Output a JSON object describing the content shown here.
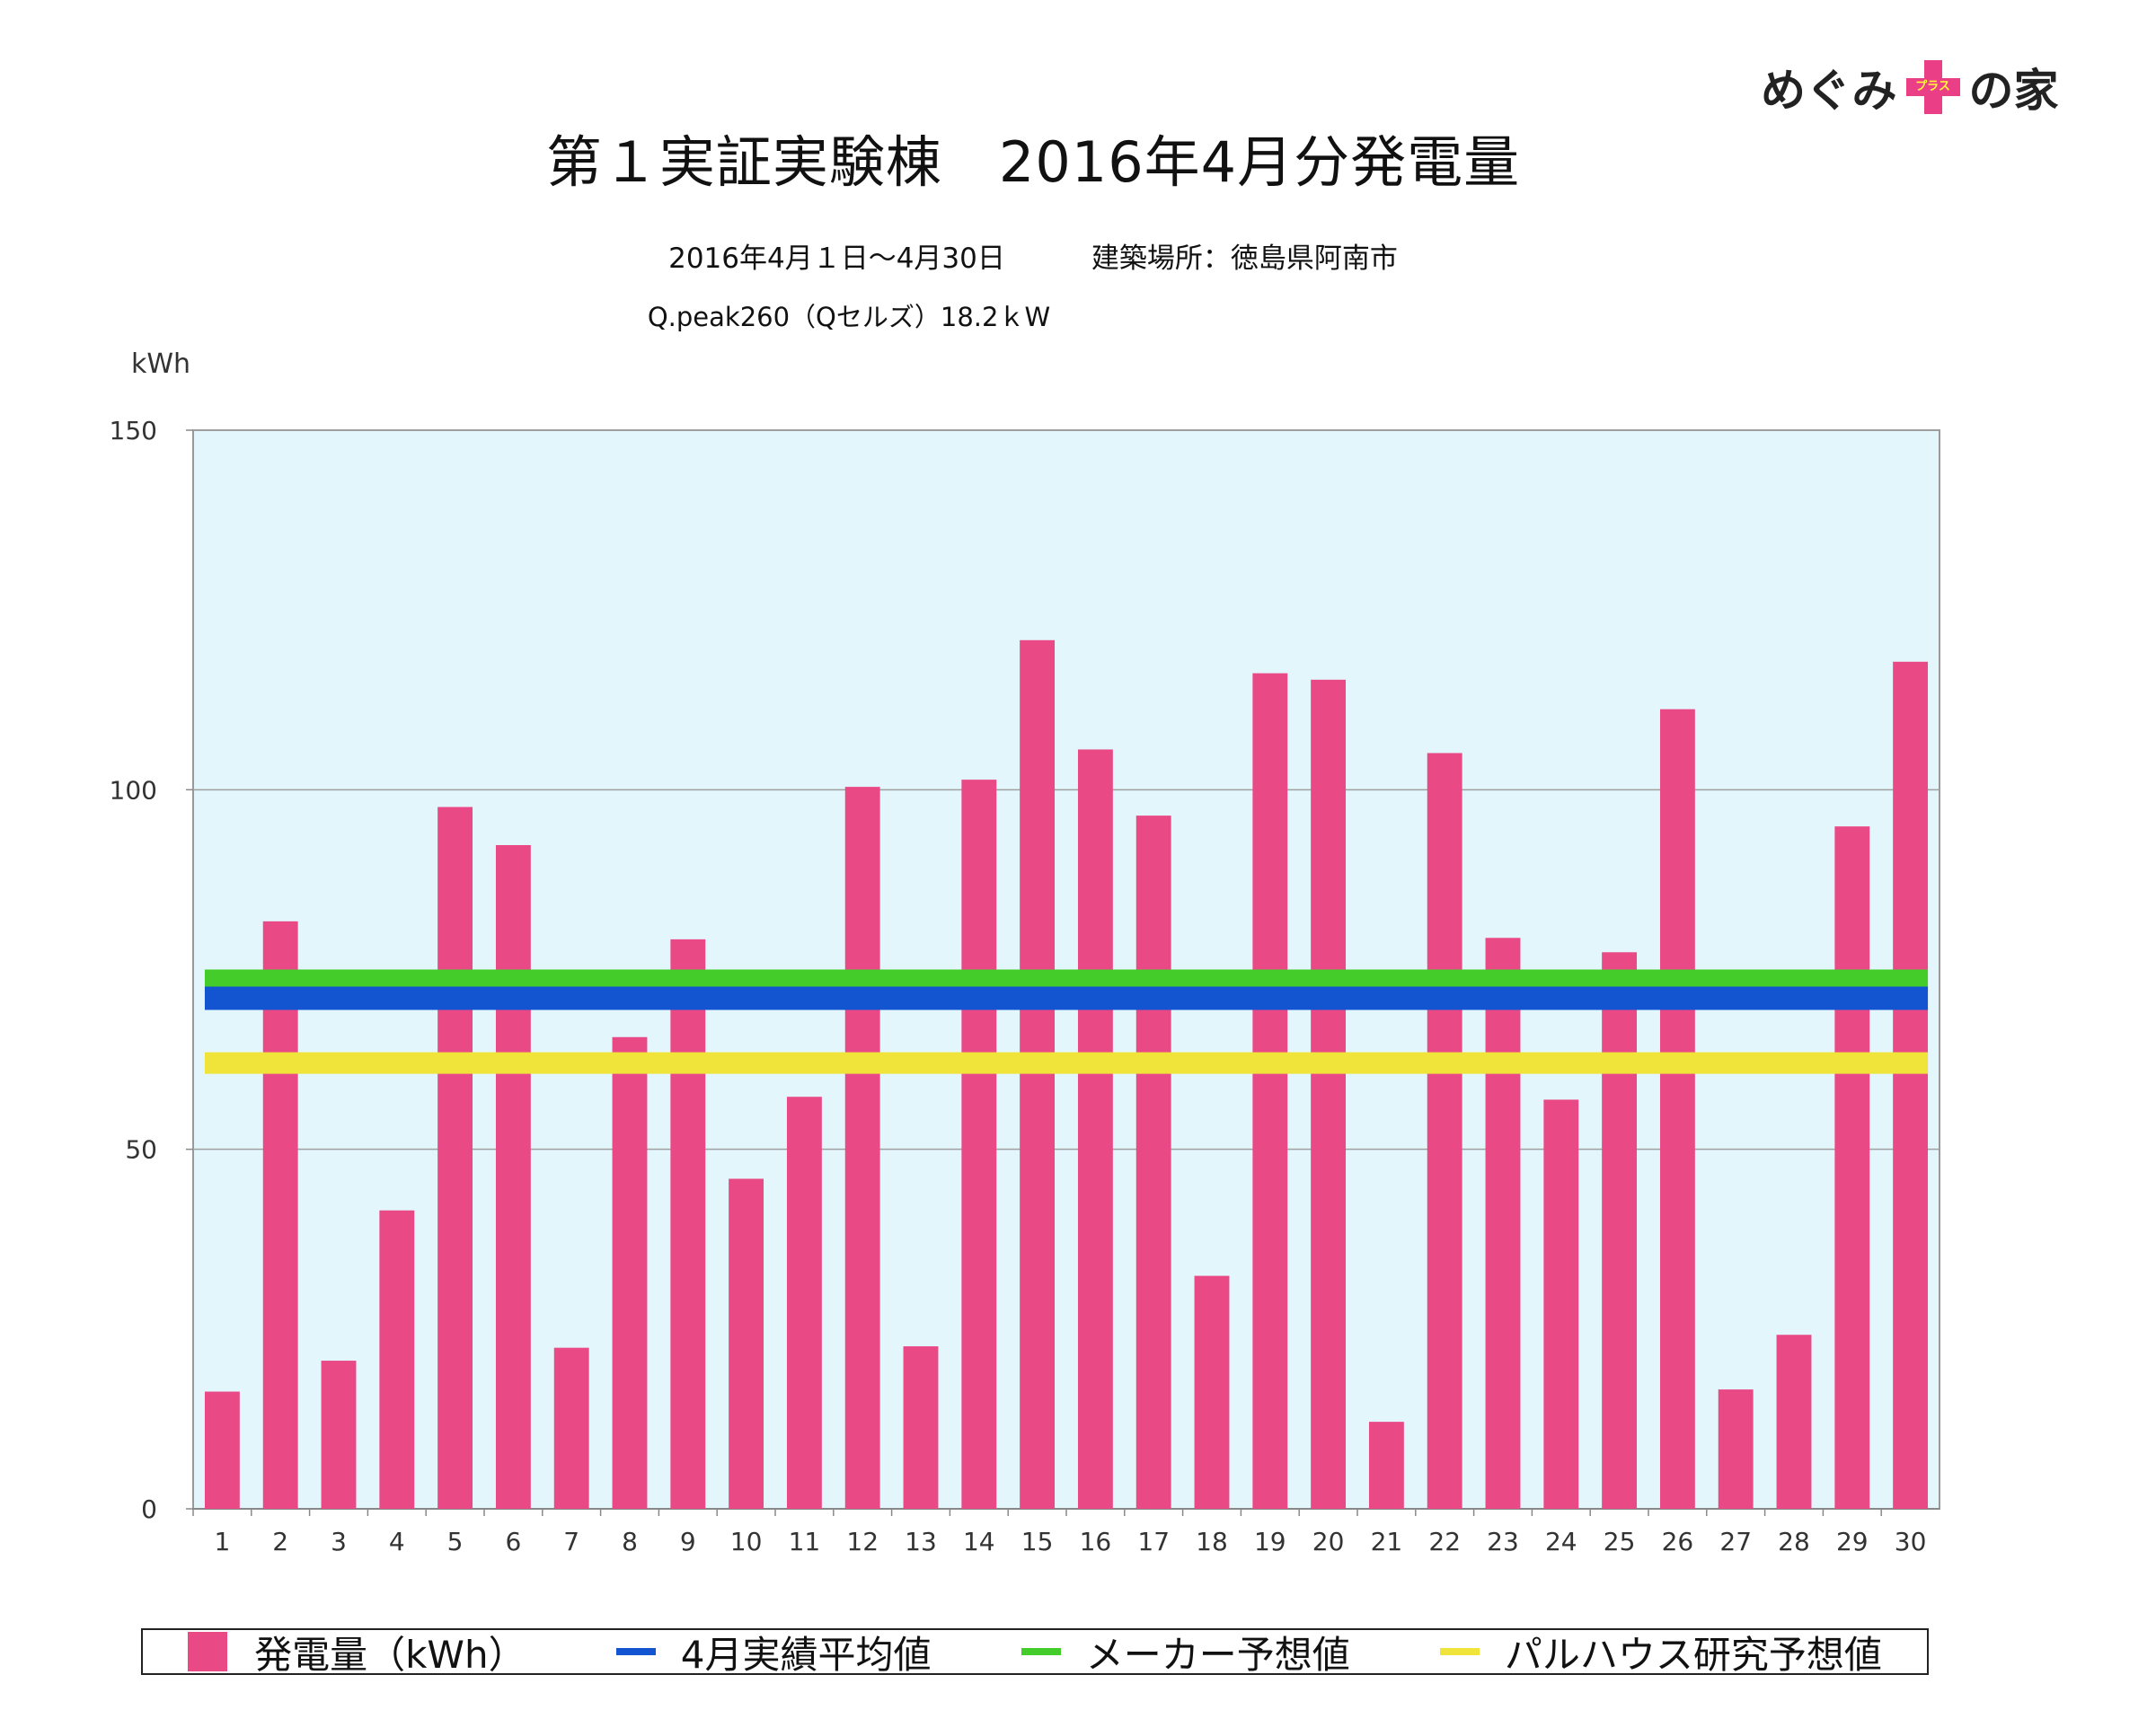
{
  "logo": {
    "left_text": "めぐみ",
    "plus_text": "プラス",
    "right_text": "の家"
  },
  "title": "第１実証実験棟　2016年4月分発電量",
  "subtitle_period": "2016年4月１日〜4月30日",
  "subtitle_location": "建築場所：徳島県阿南市",
  "subtitle_system": "Q.peak260（Qセルズ）18.2ｋW",
  "colors": {
    "bar": "#e94a86",
    "avg_line": "#1355d1",
    "maker_line": "#44cd2a",
    "palhouse_line": "#f0e43a",
    "plot_bg": "#e3f6fc"
  },
  "chart_data": {
    "type": "bar",
    "title": "第１実証実験棟　2016年4月分発電量",
    "ylabel": "kWh",
    "ylim": [
      0,
      150
    ],
    "yticks": [
      0,
      50,
      100,
      150
    ],
    "categories": [
      "1",
      "2",
      "3",
      "4",
      "5",
      "6",
      "7",
      "8",
      "9",
      "10",
      "11",
      "12",
      "13",
      "14",
      "15",
      "16",
      "17",
      "18",
      "19",
      "20",
      "21",
      "22",
      "23",
      "24",
      "25",
      "26",
      "27",
      "28",
      "29",
      "30"
    ],
    "series": [
      {
        "name": "発電量（kWh）",
        "type": "bar",
        "values": [
          16.3,
          81.7,
          20.6,
          41.5,
          97.6,
          92.3,
          22.4,
          65.6,
          79.2,
          45.9,
          57.3,
          100.4,
          22.6,
          101.4,
          120.8,
          105.6,
          96.4,
          32.4,
          116.2,
          115.3,
          12.1,
          105.1,
          79.4,
          56.9,
          77.4,
          111.2,
          16.6,
          24.2,
          94.9,
          117.8
        ]
      },
      {
        "name": "4月実績平均値",
        "type": "line",
        "value": 71
      },
      {
        "name": "メーカー予想値",
        "type": "line",
        "value": 73.5
      },
      {
        "name": "パルハウス研究予想値",
        "type": "line",
        "value": 62
      }
    ],
    "grid": true,
    "legend_position": "bottom"
  },
  "legend": [
    {
      "label": "発電量（kWh）",
      "kind": "box",
      "color": "#e94a86"
    },
    {
      "label": "4月実績平均値",
      "kind": "line",
      "color": "#1355d1"
    },
    {
      "label": "メーカー予想値",
      "kind": "line",
      "color": "#44cd2a"
    },
    {
      "label": "パルハウス研究予想値",
      "kind": "line",
      "color": "#f0e43a"
    }
  ]
}
